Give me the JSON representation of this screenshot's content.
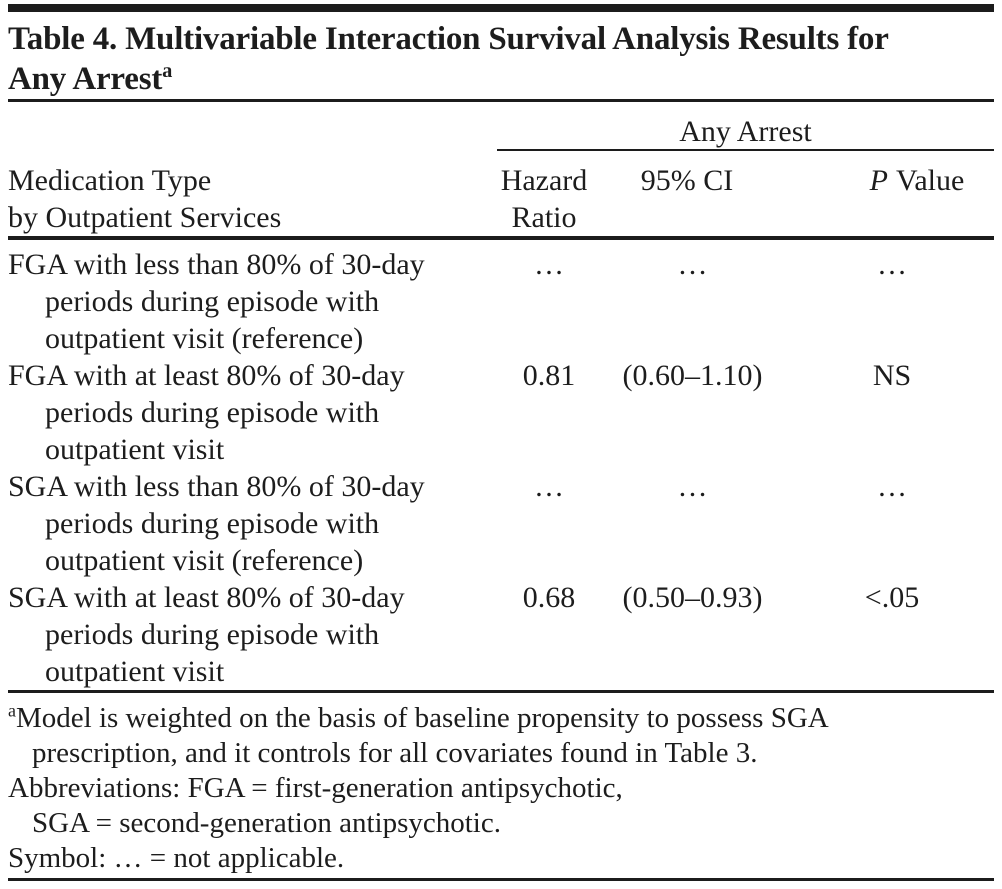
{
  "page": {
    "background_color": "#ffffff",
    "text_color": "#1d1d1d",
    "rule_color": "#1c1c1c"
  },
  "title": {
    "line1": "Table 4. Multivariable Interaction Survival Analysis Results for",
    "line2": "Any Arrest",
    "superscript": "a"
  },
  "table": {
    "span_header": "Any Arrest",
    "stub_header": {
      "line1": "Medication Type",
      "line2": "by Outpatient Services"
    },
    "col_headers": {
      "hazard_line1": "Hazard",
      "hazard_line2": "Ratio",
      "ci": "95% CI",
      "p_italic": "P",
      "p_word": "Value"
    },
    "rows": [
      {
        "label_lines": [
          "FGA with less than 80% of 30-day",
          "periods during episode with",
          "outpatient visit (reference)"
        ],
        "hazard_ratio": "…",
        "ci_95": "…",
        "p_value": "…"
      },
      {
        "label_lines": [
          "FGA with at least 80% of 30-day",
          "periods during episode with",
          "outpatient visit"
        ],
        "hazard_ratio": "0.81",
        "ci_95": "(0.60–1.10)",
        "p_value": "NS"
      },
      {
        "label_lines": [
          "SGA with less than 80% of 30-day",
          "periods during episode with",
          "outpatient visit (reference)"
        ],
        "hazard_ratio": "…",
        "ci_95": "…",
        "p_value": "…"
      },
      {
        "label_lines": [
          "SGA with at least 80% of 30-day",
          "periods during episode with",
          "outpatient visit"
        ],
        "hazard_ratio": "0.68",
        "ci_95": "(0.50–0.93)",
        "p_value": "<.05"
      }
    ]
  },
  "footnotes": {
    "model_sup": "a",
    "model_line1": "Model is weighted on the basis of baseline propensity to possess SGA",
    "model_line2": "prescription, and it controls for all covariates found in Table 3.",
    "abbreviations_line1": "Abbreviations: FGA = first-generation antipsychotic,",
    "abbreviations_line2": "SGA = second-generation antipsychotic.",
    "symbol_line": "Symbol: … = not applicable."
  }
}
